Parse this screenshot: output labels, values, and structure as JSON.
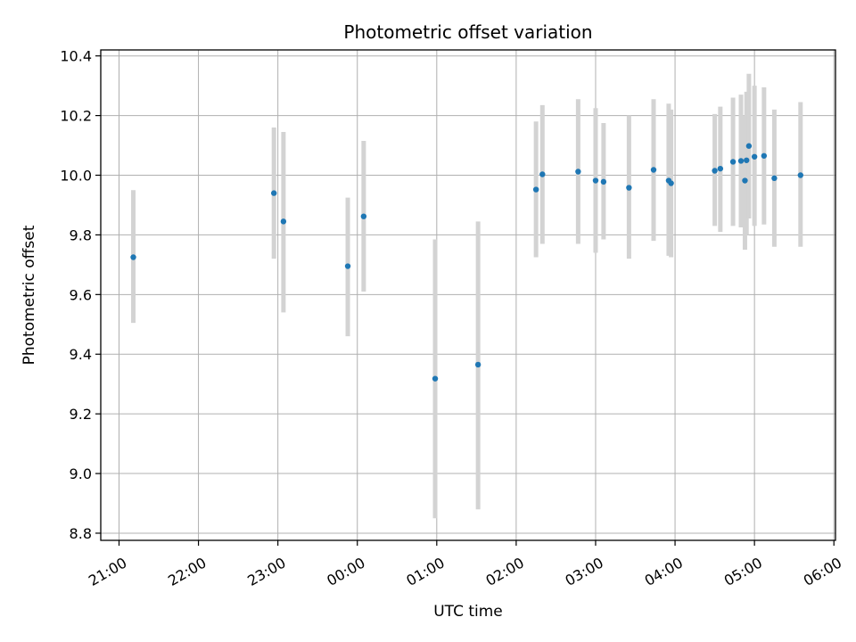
{
  "chart_data": {
    "type": "scatter",
    "title": "Photometric offset variation",
    "xlabel": "UTC time",
    "ylabel": "Photometric offset",
    "x_unit": "UTC hours",
    "x_ticks": [
      {
        "value": 21,
        "label": "21:00"
      },
      {
        "value": 22,
        "label": "22:00"
      },
      {
        "value": 23,
        "label": "23:00"
      },
      {
        "value": 24,
        "label": "00:00"
      },
      {
        "value": 25,
        "label": "01:00"
      },
      {
        "value": 26,
        "label": "02:00"
      },
      {
        "value": 27,
        "label": "03:00"
      },
      {
        "value": 28,
        "label": "04:00"
      },
      {
        "value": 29,
        "label": "05:00"
      },
      {
        "value": 30,
        "label": "06:00"
      }
    ],
    "y_ticks": [
      {
        "value": 8.8,
        "label": "8.8"
      },
      {
        "value": 9.0,
        "label": "9.0"
      },
      {
        "value": 9.2,
        "label": "9.2"
      },
      {
        "value": 9.4,
        "label": "9.4"
      },
      {
        "value": 9.6,
        "label": "9.6"
      },
      {
        "value": 9.8,
        "label": "9.8"
      },
      {
        "value": 10.0,
        "label": "10.0"
      },
      {
        "value": 10.2,
        "label": "10.2"
      },
      {
        "value": 10.4,
        "label": "10.4"
      }
    ],
    "xlim": [
      20.77,
      30.02
    ],
    "ylim": [
      8.776,
      10.42
    ],
    "grid": true,
    "marker_color": "#1f77b4",
    "errorbar_color": "#d3d3d3",
    "points": [
      {
        "x": 21.18,
        "y": 9.725,
        "ylow": 9.505,
        "yhigh": 9.95
      },
      {
        "x": 22.95,
        "y": 9.94,
        "ylow": 9.72,
        "yhigh": 10.16
      },
      {
        "x": 23.07,
        "y": 9.845,
        "ylow": 9.54,
        "yhigh": 10.145
      },
      {
        "x": 23.88,
        "y": 9.695,
        "ylow": 9.46,
        "yhigh": 9.925
      },
      {
        "x": 24.08,
        "y": 9.862,
        "ylow": 9.61,
        "yhigh": 10.115
      },
      {
        "x": 24.98,
        "y": 9.318,
        "ylow": 8.85,
        "yhigh": 9.785
      },
      {
        "x": 25.52,
        "y": 9.365,
        "ylow": 8.88,
        "yhigh": 9.845
      },
      {
        "x": 26.25,
        "y": 9.952,
        "ylow": 9.725,
        "yhigh": 10.18
      },
      {
        "x": 26.33,
        "y": 10.003,
        "ylow": 9.77,
        "yhigh": 10.235
      },
      {
        "x": 26.78,
        "y": 10.012,
        "ylow": 9.77,
        "yhigh": 10.255
      },
      {
        "x": 27.0,
        "y": 9.982,
        "ylow": 9.74,
        "yhigh": 10.225
      },
      {
        "x": 27.1,
        "y": 9.978,
        "ylow": 9.785,
        "yhigh": 10.175
      },
      {
        "x": 27.42,
        "y": 9.958,
        "ylow": 9.72,
        "yhigh": 10.2
      },
      {
        "x": 27.73,
        "y": 10.018,
        "ylow": 9.78,
        "yhigh": 10.255
      },
      {
        "x": 27.92,
        "y": 9.982,
        "ylow": 9.73,
        "yhigh": 10.24
      },
      {
        "x": 27.95,
        "y": 9.973,
        "ylow": 9.725,
        "yhigh": 10.22
      },
      {
        "x": 28.5,
        "y": 10.015,
        "ylow": 9.83,
        "yhigh": 10.205
      },
      {
        "x": 28.57,
        "y": 10.022,
        "ylow": 9.81,
        "yhigh": 10.23
      },
      {
        "x": 28.73,
        "y": 10.045,
        "ylow": 9.83,
        "yhigh": 10.26
      },
      {
        "x": 28.83,
        "y": 10.048,
        "ylow": 9.825,
        "yhigh": 10.27
      },
      {
        "x": 28.88,
        "y": 9.982,
        "ylow": 9.75,
        "yhigh": 10.2
      },
      {
        "x": 28.9,
        "y": 10.05,
        "ylow": 9.8,
        "yhigh": 10.28
      },
      {
        "x": 28.93,
        "y": 10.098,
        "ylow": 9.855,
        "yhigh": 10.34
      },
      {
        "x": 29.0,
        "y": 10.062,
        "ylow": 9.83,
        "yhigh": 10.3
      },
      {
        "x": 29.12,
        "y": 10.065,
        "ylow": 9.835,
        "yhigh": 10.295
      },
      {
        "x": 29.25,
        "y": 9.99,
        "ylow": 9.76,
        "yhigh": 10.22
      },
      {
        "x": 29.58,
        "y": 10.0,
        "ylow": 9.76,
        "yhigh": 10.245
      }
    ]
  }
}
